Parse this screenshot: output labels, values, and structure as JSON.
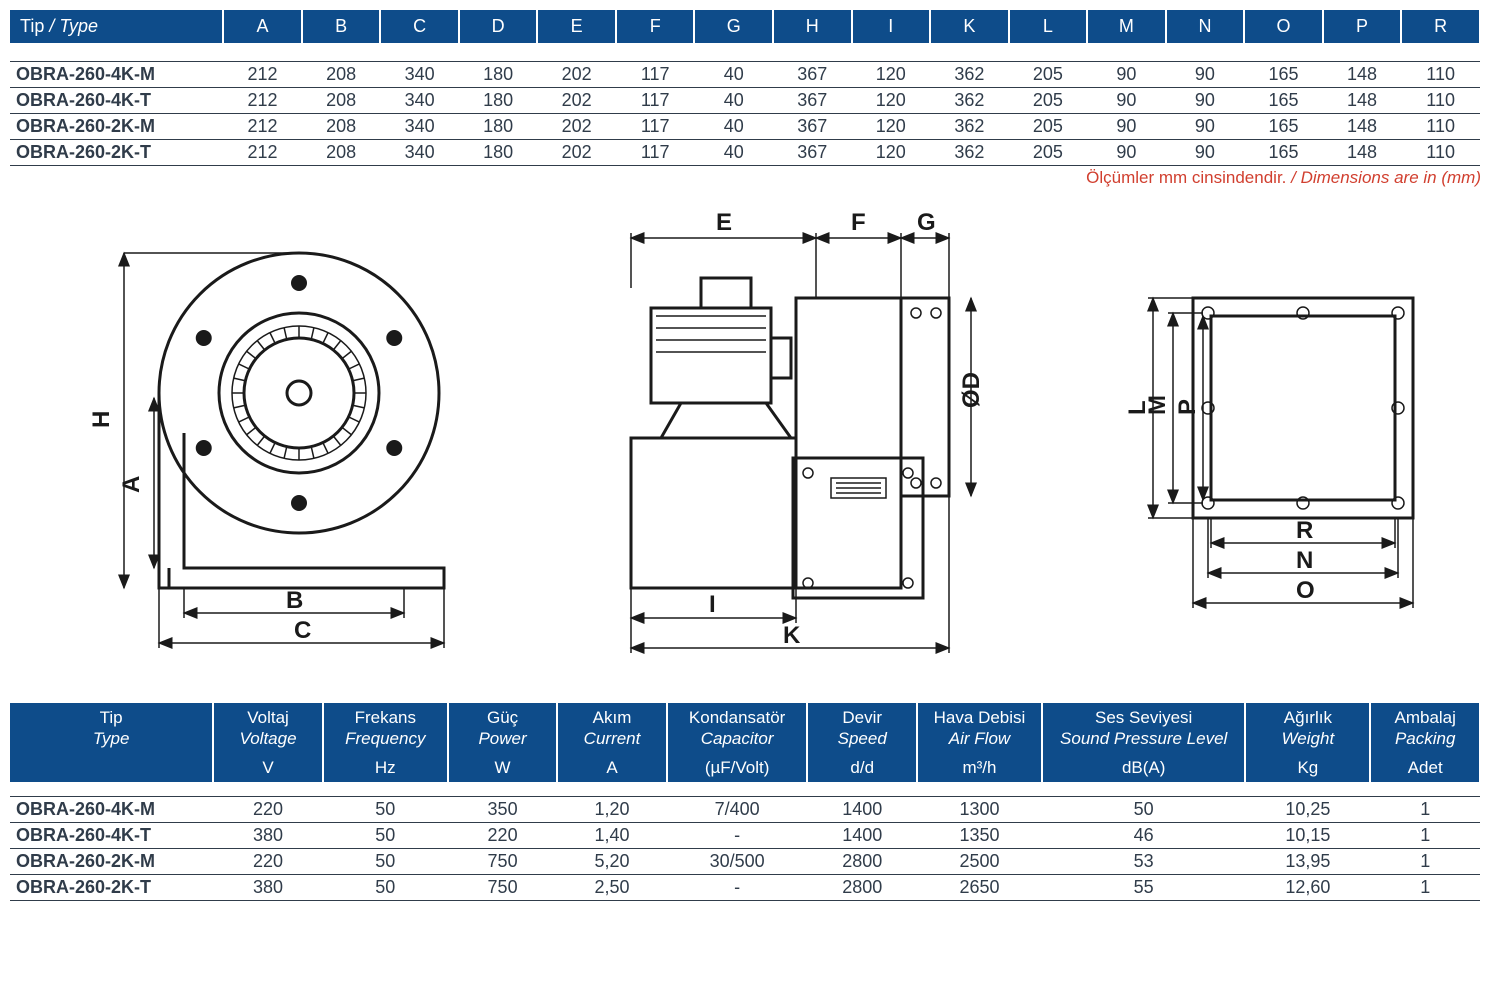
{
  "table1": {
    "header_label": "Tip / Type",
    "columns": [
      "A",
      "B",
      "C",
      "D",
      "E",
      "F",
      "G",
      "H",
      "I",
      "K",
      "L",
      "M",
      "N",
      "O",
      "P",
      "R"
    ],
    "rows": [
      {
        "type": "OBRA-260-4K-M",
        "v": [
          212,
          208,
          340,
          180,
          202,
          117,
          40,
          367,
          120,
          362,
          205,
          90,
          90,
          165,
          148,
          110
        ]
      },
      {
        "type": "OBRA-260-4K-T",
        "v": [
          212,
          208,
          340,
          180,
          202,
          117,
          40,
          367,
          120,
          362,
          205,
          90,
          90,
          165,
          148,
          110
        ]
      },
      {
        "type": "OBRA-260-2K-M",
        "v": [
          212,
          208,
          340,
          180,
          202,
          117,
          40,
          367,
          120,
          362,
          205,
          90,
          90,
          165,
          148,
          110
        ]
      },
      {
        "type": "OBRA-260-2K-T",
        "v": [
          212,
          208,
          340,
          180,
          202,
          117,
          40,
          367,
          120,
          362,
          205,
          90,
          90,
          165,
          148,
          110
        ]
      }
    ],
    "footnote_tr": "Ölçümler mm cinsindendir.",
    "footnote_en": "Dimensions are in (mm)",
    "header_bg": "#0e4c8a",
    "header_fg": "#ffffff",
    "col_widths_pct": [
      14.5,
      5.34,
      5.34,
      5.34,
      5.34,
      5.34,
      5.34,
      5.34,
      5.34,
      5.34,
      5.34,
      5.34,
      5.34,
      5.34,
      5.34,
      5.34,
      5.34
    ]
  },
  "diagram": {
    "labels": [
      "A",
      "B",
      "C",
      "E",
      "F",
      "G",
      "ØD",
      "H",
      "I",
      "K",
      "L",
      "M",
      "P",
      "R",
      "N",
      "O"
    ],
    "stroke": "#1a1a1a"
  },
  "table2": {
    "columns": [
      {
        "tr": "Tip",
        "en": "Type",
        "unit": "",
        "w": 13
      },
      {
        "tr": "Voltaj",
        "en": "Voltage",
        "unit": "V",
        "w": 7
      },
      {
        "tr": "Frekans",
        "en": "Frequency",
        "unit": "Hz",
        "w": 8
      },
      {
        "tr": "Güç",
        "en": "Power",
        "unit": "W",
        "w": 7
      },
      {
        "tr": "Akım",
        "en": "Current",
        "unit": "A",
        "w": 7
      },
      {
        "tr": "Kondansatör",
        "en": "Capacitor",
        "unit": "(µF/Volt)",
        "w": 9
      },
      {
        "tr": "Devir",
        "en": "Speed",
        "unit": "d/d",
        "w": 7
      },
      {
        "tr": "Hava Debisi",
        "en": "Air Flow",
        "unit": "m³/h",
        "w": 8
      },
      {
        "tr": "Ses Seviyesi",
        "en": "Sound Pressure Level",
        "unit": "dB(A)",
        "w": 13
      },
      {
        "tr": "Ağırlık",
        "en": "Weight",
        "unit": "Kg",
        "w": 8
      },
      {
        "tr": "Ambalaj",
        "en": "Packing",
        "unit": "Adet",
        "w": 7
      }
    ],
    "rows": [
      {
        "type": "OBRA-260-4K-M",
        "v": [
          "220",
          "50",
          "350",
          "1,20",
          "7/400",
          "1400",
          "1300",
          "50",
          "10,25",
          "1"
        ]
      },
      {
        "type": "OBRA-260-4K-T",
        "v": [
          "380",
          "50",
          "220",
          "1,40",
          "-",
          "1400",
          "1350",
          "46",
          "10,15",
          "1"
        ]
      },
      {
        "type": "OBRA-260-2K-M",
        "v": [
          "220",
          "50",
          "750",
          "5,20",
          "30/500",
          "2800",
          "2500",
          "53",
          "13,95",
          "1"
        ]
      },
      {
        "type": "OBRA-260-2K-T",
        "v": [
          "380",
          "50",
          "750",
          "2,50",
          "-",
          "2800",
          "2650",
          "55",
          "12,60",
          "1"
        ]
      }
    ]
  }
}
